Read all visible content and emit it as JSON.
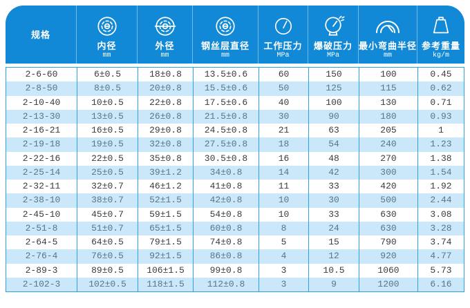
{
  "colors": {
    "header_bg": "#1289d6",
    "grid": "#2aa2e3",
    "alt_row_bg": "#cbe8fa",
    "row_text": "#3b3b3b",
    "alt_row_text": "#56758a"
  },
  "table": {
    "columns": [
      {
        "label": "规格",
        "unit": "",
        "icon": ""
      },
      {
        "label": "内径",
        "unit": "mm",
        "icon": "inner-diameter-icon"
      },
      {
        "label": "外径",
        "unit": "mm",
        "icon": "outer-diameter-icon"
      },
      {
        "label": "钢丝层直径",
        "unit": "mm",
        "icon": "steel-wire-diameter-icon"
      },
      {
        "label": "工作压力",
        "unit": "MPa",
        "icon": "working-pressure-gauge-icon"
      },
      {
        "label": "爆破压力",
        "unit": "MPa",
        "icon": "burst-pressure-gauge-icon"
      },
      {
        "label": "最小弯曲半径",
        "unit": "mm",
        "icon": "min-bend-radius-icon"
      },
      {
        "label": "参考重量",
        "unit": "kg/m",
        "icon": "weight-icon"
      }
    ],
    "rows": [
      [
        "2-6-60",
        "6±0.5",
        "18±0.8",
        "13.5±0.6",
        "60",
        "150",
        "100",
        "0.45"
      ],
      [
        "2-8-50",
        "8±0.5",
        "20±0.8",
        "15.5±0.6",
        "50",
        "125",
        "115",
        "0.62"
      ],
      [
        "2-10-40",
        "10±0.5",
        "22±0.8",
        "17.5±0.6",
        "40",
        "100",
        "130",
        "0.71"
      ],
      [
        "2-13-30",
        "13±0.5",
        "26±0.8",
        "21.5±0.8",
        "30",
        "90",
        "180",
        "0.93"
      ],
      [
        "2-16-21",
        "16±0.5",
        "29±0.8",
        "24.5±0.8",
        "21",
        "63",
        "205",
        "1"
      ],
      [
        "2-19-18",
        "19±0.5",
        "32±0.8",
        "27.5±0.8",
        "18",
        "54",
        "240",
        "1.23"
      ],
      [
        "2-22-16",
        "22±0.5",
        "35±0.8",
        "30.5±0.8",
        "16",
        "48",
        "270",
        "1.38"
      ],
      [
        "2-25-14",
        "25±0.5",
        "39±1.2",
        "34±0.8",
        "14",
        "42",
        "300",
        "1.54"
      ],
      [
        "2-32-11",
        "32±0.7",
        "46±1.2",
        "41±0.8",
        "11",
        "33",
        "420",
        "1.92"
      ],
      [
        "2-38-10",
        "38±0.7",
        "52±1.5",
        "42±0.8",
        "10",
        "30",
        "500",
        "2.44"
      ],
      [
        "2-45-10",
        "45±0.7",
        "59±1.5",
        "54±0.8",
        "10",
        "33",
        "630",
        "3.08"
      ],
      [
        "2-51-8",
        "51±0.7",
        "65±1.5",
        "60±0.8",
        "8",
        "24",
        "630",
        "3.28"
      ],
      [
        "2-64-5",
        "64±0.5",
        "79±1.5",
        "74±0.8",
        "5",
        "15",
        "790",
        "3.74"
      ],
      [
        "2-76-4",
        "76±0.5",
        "92±1.5",
        "86±0.8",
        "4",
        "12",
        "920",
        "4.77"
      ],
      [
        "2-89-3",
        "89±0.5",
        "106±1.5",
        "99±0.8",
        "3",
        "10.5",
        "1060",
        "5.73"
      ],
      [
        "2-102-3",
        "102±0.5",
        "118±1.5",
        "112±0.8",
        "3",
        "9",
        "1200",
        "6.16"
      ]
    ]
  }
}
